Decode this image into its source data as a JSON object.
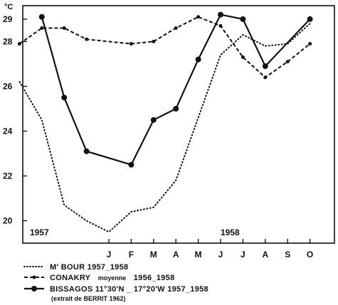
{
  "chart_data": {
    "type": "line",
    "y_unit": "°C",
    "ylim": [
      19,
      29.6
    ],
    "y_ticks": [
      20,
      22,
      24,
      26,
      28,
      29
    ],
    "x_ticks": [
      "J",
      "F",
      "M",
      "A",
      "M",
      "J",
      "J",
      "A",
      "S",
      "O"
    ],
    "year_labels": [
      "1957",
      "1958"
    ],
    "series": [
      {
        "name": "M' BOUR 1957_1958",
        "style": "dotted",
        "points": [
          {
            "x": "S",
            "y": 26.2
          },
          {
            "x": "O",
            "y": 24.5
          },
          {
            "x": "N",
            "y": 20.7
          },
          {
            "x": "D",
            "y": 20.0
          },
          {
            "x": "J",
            "y": 19.5
          },
          {
            "x": "F",
            "y": 20.4
          },
          {
            "x": "M",
            "y": 20.6
          },
          {
            "x": "A",
            "y": 21.8
          },
          {
            "x": "M",
            "y": 24.6
          },
          {
            "x": "J",
            "y": 27.4
          },
          {
            "x": "J",
            "y": 28.3
          },
          {
            "x": "A",
            "y": 27.8
          },
          {
            "x": "S",
            "y": 27.9
          },
          {
            "x": "O",
            "y": 28.8
          }
        ]
      },
      {
        "name": "CONAKRY moyenne 1956_1958",
        "style": "dashed",
        "points": [
          {
            "x": "S",
            "y": 27.9
          },
          {
            "x": "O",
            "y": 28.6
          },
          {
            "x": "N",
            "y": 28.6
          },
          {
            "x": "D",
            "y": 28.1
          },
          {
            "x": "F",
            "y": 27.9
          },
          {
            "x": "M",
            "y": 28.0
          },
          {
            "x": "A",
            "y": 28.6
          },
          {
            "x": "M",
            "y": 29.1
          },
          {
            "x": "J",
            "y": 28.7
          },
          {
            "x": "J",
            "y": 27.3
          },
          {
            "x": "A",
            "y": 26.4
          },
          {
            "x": "S",
            "y": 27.1
          },
          {
            "x": "O",
            "y": 27.9
          }
        ]
      },
      {
        "name": "BISSAGOS 11°30'N _ 17°20'W 1957_1958",
        "style": "solid",
        "points": [
          {
            "x": "O",
            "y": 29.1
          },
          {
            "x": "N",
            "y": 25.5
          },
          {
            "x": "D",
            "y": 23.1
          },
          {
            "x": "F",
            "y": 22.5
          },
          {
            "x": "M",
            "y": 24.5
          },
          {
            "x": "A",
            "y": 25.0
          },
          {
            "x": "M",
            "y": 27.2
          },
          {
            "x": "J",
            "y": 29.2
          },
          {
            "x": "J",
            "y": 29.0
          },
          {
            "x": "A",
            "y": 26.9
          },
          {
            "x": "O",
            "y": 29.0
          }
        ]
      }
    ]
  },
  "legend": {
    "mbour": "M' BOUR     1957_1958",
    "conakry_name": "CONAKRY",
    "conakry_note": "moyenne",
    "conakry_years": "1956_1958",
    "bissagos": "BISSAGOS 11°30'N _ 17°20'W 1957_1958",
    "source": "(extrait de BERRIT 1962)"
  }
}
